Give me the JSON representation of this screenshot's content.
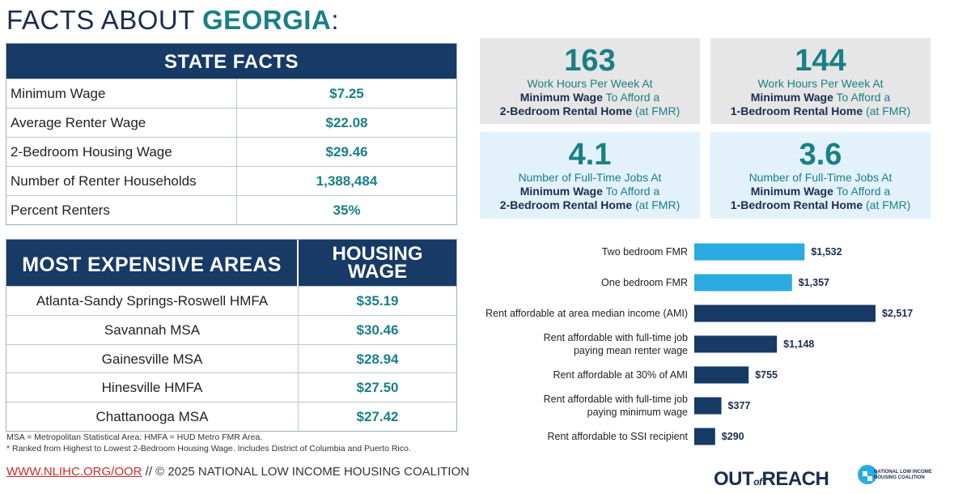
{
  "title": {
    "prefix": "FACTS ABOUT ",
    "state": "GEORGIA",
    "suffix": ":"
  },
  "state_facts": {
    "header": "STATE FACTS",
    "rows": [
      {
        "label": "Minimum Wage",
        "value": "$7.25"
      },
      {
        "label": "Average Renter Wage",
        "value": "$22.08"
      },
      {
        "label": "2-Bedroom Housing Wage",
        "value": "$29.46"
      },
      {
        "label": "Number of Renter Households",
        "value": "1,388,484"
      },
      {
        "label": "Percent Renters",
        "value": "35%"
      }
    ]
  },
  "expensive_areas": {
    "header_area": "MOST EXPENSIVE AREAS",
    "header_wage_1": "HOUSING",
    "header_wage_2": "WAGE",
    "rows": [
      {
        "label": "Atlanta-Sandy Springs-Roswell HMFA",
        "value": "$35.19"
      },
      {
        "label": "Savannah MSA",
        "value": "$30.46"
      },
      {
        "label": "Gainesville MSA",
        "value": "$28.94"
      },
      {
        "label": "Hinesville HMFA",
        "value": "$27.50"
      },
      {
        "label": "Chattanooga MSA",
        "value": "$27.42"
      }
    ]
  },
  "footnotes": {
    "line1": "MSA = Metropolitan Statistical Area: HMFA = HUD Metro FMR Area.",
    "line2": "* Ranked from Highest to Lowest 2-Bedroom Housing Wage. Includes District of Columbia and Puerto Rico."
  },
  "footer": {
    "link": "WWW.NLIHC.ORG/OOR",
    "text": " // © 2025 NATIONAL LOW INCOME HOUSING COALITION"
  },
  "cards": [
    {
      "number": "163",
      "line1": "Work Hours Per Week At",
      "bold2": "Minimum Wage",
      "line2": " To Afford a",
      "bold3": "2-Bedroom Rental Home",
      "line3": " (at FMR)"
    },
    {
      "number": "144",
      "line1": "Work Hours Per Week At",
      "bold2": "Minimum Wage",
      "line2": " To Afford a",
      "bold3": "1-Bedroom Rental Home",
      "line3": " (at FMR)"
    },
    {
      "number": "4.1",
      "line1": "Number of Full-Time Jobs At",
      "bold2": "Minimum Wage",
      "line2": " To Afford a",
      "bold3": "2-Bedroom Rental Home",
      "line3": " (at FMR)"
    },
    {
      "number": "3.6",
      "line1": "Number of Full-Time Jobs At",
      "bold2": "Minimum Wage",
      "line2": " To Afford a",
      "bold3": "1-Bedroom Rental Home",
      "line3": " (at FMR)"
    }
  ],
  "colors": {
    "navy": "#173a66",
    "teal": "#1a7f86",
    "light_blue": "#29abe2",
    "bar_navy": "#1b4a80"
  },
  "chart_data": {
    "type": "bar",
    "orientation": "horizontal",
    "categories": [
      [
        "Two bedroom FMR"
      ],
      [
        "One bedroom FMR"
      ],
      [
        "Rent affordable at area median income (AMI)"
      ],
      [
        "Rent affordable with full-time job",
        "paying mean renter wage"
      ],
      [
        "Rent affordable at 30% of AMI"
      ],
      [
        "Rent affordable with full-time job",
        "paying minimum wage"
      ],
      [
        "Rent affordable to SSI recipient"
      ]
    ],
    "values": [
      1532,
      1357,
      2517,
      1148,
      755,
      377,
      290
    ],
    "value_labels": [
      "$1,532",
      "$1,357",
      "$2,517",
      "$1,148",
      "$755",
      "$377",
      "$290"
    ],
    "bar_colors": [
      "light_blue",
      "light_blue",
      "navy",
      "navy",
      "navy",
      "navy",
      "navy"
    ],
    "xlim": [
      0,
      2517
    ]
  },
  "brand": {
    "out": "OUT",
    "of": "of",
    "reach": "REACH",
    "org_line1": "NATIONAL LOW INCOME",
    "org_line2": "HOUSING COALITION"
  }
}
